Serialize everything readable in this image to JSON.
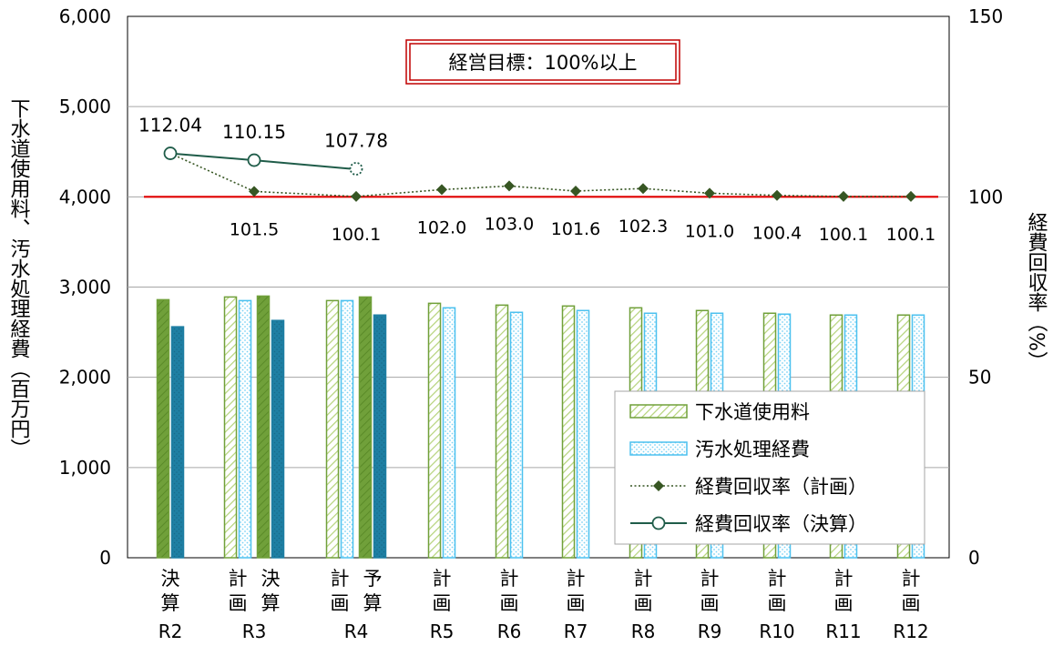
{
  "chart_data": {
    "type": "bar",
    "yleft_label": "下水道使用料、汚水処理経費（百万円）",
    "yright_label": "経費回収率（%）",
    "yleft_lim": [
      0,
      6000
    ],
    "yright_lim": [
      0,
      150
    ],
    "yleft_ticks": [
      "0",
      "1,000",
      "2,000",
      "3,000",
      "4,000",
      "5,000",
      "6,000"
    ],
    "yright_ticks": [
      "0",
      "50",
      "100",
      "150"
    ],
    "grid": true,
    "target_line": 100,
    "annotation": "経営目標：100%以上",
    "legend_position": "bottom-right",
    "years": [
      "R2",
      "R3",
      "R4",
      "R5",
      "R6",
      "R7",
      "R8",
      "R9",
      "R10",
      "R11",
      "R12"
    ],
    "groups": [
      {
        "year": "R2",
        "types": [
          "決算"
        ]
      },
      {
        "year": "R3",
        "types": [
          "計画",
          "決算"
        ]
      },
      {
        "year": "R4",
        "types": [
          "計画",
          "予算"
        ]
      },
      {
        "year": "R5",
        "types": [
          "計画"
        ]
      },
      {
        "year": "R6",
        "types": [
          "計画"
        ]
      },
      {
        "year": "R7",
        "types": [
          "計画"
        ]
      },
      {
        "year": "R8",
        "types": [
          "計画"
        ]
      },
      {
        "year": "R9",
        "types": [
          "計画"
        ]
      },
      {
        "year": "R10",
        "types": [
          "計画"
        ]
      },
      {
        "year": "R11",
        "types": [
          "計画"
        ]
      },
      {
        "year": "R12",
        "types": [
          "計画"
        ]
      }
    ],
    "bars": [
      {
        "year": "R2",
        "type": "決算",
        "revenue": 2860,
        "expense": 2560
      },
      {
        "year": "R3",
        "type": "計画",
        "revenue": 2890,
        "expense": 2850
      },
      {
        "year": "R3",
        "type": "決算",
        "revenue": 2900,
        "expense": 2630
      },
      {
        "year": "R4",
        "type": "計画",
        "revenue": 2850,
        "expense": 2850
      },
      {
        "year": "R4",
        "type": "予算",
        "revenue": 2890,
        "expense": 2690
      },
      {
        "year": "R5",
        "type": "計画",
        "revenue": 2820,
        "expense": 2770
      },
      {
        "year": "R6",
        "type": "計画",
        "revenue": 2800,
        "expense": 2720
      },
      {
        "year": "R7",
        "type": "計画",
        "revenue": 2790,
        "expense": 2740
      },
      {
        "year": "R8",
        "type": "計画",
        "revenue": 2770,
        "expense": 2710
      },
      {
        "year": "R9",
        "type": "計画",
        "revenue": 2740,
        "expense": 2710
      },
      {
        "year": "R10",
        "type": "計画",
        "revenue": 2710,
        "expense": 2700
      },
      {
        "year": "R11",
        "type": "計画",
        "revenue": 2690,
        "expense": 2690
      },
      {
        "year": "R12",
        "type": "計画",
        "revenue": 2690,
        "expense": 2690
      }
    ],
    "series": [
      {
        "name": "下水道使用料",
        "key": "revenue",
        "color": "#8db33b"
      },
      {
        "name": "汚水処理経費",
        "key": "expense",
        "color": "#4cc1ef"
      },
      {
        "name": "経費回収率（計画）",
        "color": "#375623",
        "points": [
          {
            "year": "R2",
            "value": 112.04,
            "label": ""
          },
          {
            "year": "R3",
            "value": 101.5,
            "label": "101.5"
          },
          {
            "year": "R4",
            "value": 100.1,
            "label": "100.1"
          },
          {
            "year": "R5",
            "value": 102.0,
            "label": "102.0"
          },
          {
            "year": "R6",
            "value": 103.0,
            "label": "103.0"
          },
          {
            "year": "R7",
            "value": 101.6,
            "label": "101.6"
          },
          {
            "year": "R8",
            "value": 102.3,
            "label": "102.3"
          },
          {
            "year": "R9",
            "value": 101.0,
            "label": "101.0"
          },
          {
            "year": "R10",
            "value": 100.4,
            "label": "100.4"
          },
          {
            "year": "R11",
            "value": 100.1,
            "label": "100.1"
          },
          {
            "year": "R12",
            "value": 100.1,
            "label": "100.1"
          }
        ]
      },
      {
        "name": "経費回収率（決算）",
        "color": "#1f5c49",
        "points": [
          {
            "year": "R2",
            "value": 112.04,
            "label": "112.04"
          },
          {
            "year": "R3",
            "value": 110.15,
            "label": "110.15"
          },
          {
            "year": "R4",
            "value": 107.78,
            "label": "107.78",
            "dashed": true
          }
        ]
      }
    ],
    "colors": {
      "revenue_solid": "#70a03a",
      "revenue_hatch": "#8db33b",
      "expense_solid": "#1e7fa3",
      "expense_dots": "#4cc1ef",
      "target": "#e00000",
      "annotation_border": "#c00000",
      "grid": "#a6a6a6"
    }
  }
}
